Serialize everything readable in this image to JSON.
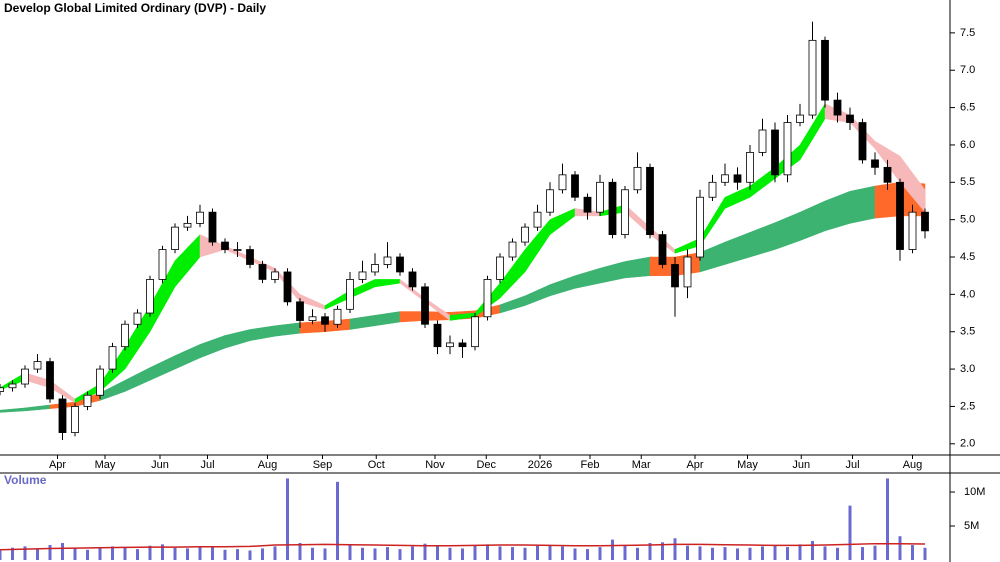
{
  "chart_data": {
    "type": "candlestick",
    "title": "Develop Global Limited Ordinary (DVP) - Daily",
    "x": [
      0,
      1,
      2,
      3,
      4,
      5,
      6,
      7,
      8,
      9,
      10,
      11,
      12,
      13,
      14,
      15,
      16,
      17,
      18,
      19,
      20,
      21,
      22,
      23,
      24,
      25,
      26,
      27,
      28,
      29,
      30,
      31,
      32,
      33,
      34,
      35,
      36,
      37,
      38,
      39,
      40,
      41,
      42,
      43,
      44,
      45,
      46,
      47,
      48,
      49,
      50,
      51,
      52,
      53,
      54,
      55,
      56,
      57,
      58,
      59,
      60,
      61,
      62,
      63,
      64,
      65,
      66,
      67,
      68,
      69,
      70,
      71,
      72,
      73,
      74
    ],
    "xlim": [
      0,
      76
    ],
    "xticks": [
      {
        "value": 4.6,
        "label": "Apr"
      },
      {
        "value": 8.4,
        "label": "May"
      },
      {
        "value": 12.8,
        "label": "Jun"
      },
      {
        "value": 16.6,
        "label": "Jul"
      },
      {
        "value": 21.4,
        "label": "Aug"
      },
      {
        "value": 25.8,
        "label": "Sep"
      },
      {
        "value": 30.1,
        "label": "Oct"
      },
      {
        "value": 34.8,
        "label": "Nov"
      },
      {
        "value": 38.9,
        "label": "Dec"
      },
      {
        "value": 43.2,
        "label": "2026"
      },
      {
        "value": 47.2,
        "label": "Feb"
      },
      {
        "value": 51.3,
        "label": "Mar"
      },
      {
        "value": 55.6,
        "label": "Apr"
      },
      {
        "value": 59.8,
        "label": "May"
      },
      {
        "value": 64.1,
        "label": "Jun"
      },
      {
        "value": 68.2,
        "label": "Jul"
      },
      {
        "value": 73,
        "label": "Aug"
      }
    ],
    "ylim": [
      1.85,
      7.94
    ],
    "yticks": [
      {
        "value": 2,
        "label": "2.0"
      },
      2.5,
      {
        "value": 3,
        "label": "3.0"
      },
      3.5,
      {
        "value": 4,
        "label": "4.0"
      },
      4.5,
      {
        "value": 5,
        "label": "5.0"
      },
      5.5,
      {
        "value": 6,
        "label": "6.0"
      },
      6.5,
      {
        "value": 7,
        "label": "7.0"
      },
      7.5
    ],
    "open": [
      2.7,
      2.75,
      2.8,
      3.0,
      3.1,
      2.6,
      2.15,
      2.5,
      2.65,
      3.0,
      3.3,
      3.6,
      3.75,
      4.2,
      4.6,
      4.9,
      4.95,
      5.1,
      4.7,
      4.6,
      4.6,
      4.4,
      4.2,
      4.3,
      3.9,
      3.65,
      3.7,
      3.6,
      3.8,
      4.2,
      4.3,
      4.4,
      4.5,
      4.3,
      4.1,
      3.6,
      3.3,
      3.35,
      3.3,
      3.7,
      4.2,
      4.5,
      4.7,
      4.9,
      5.1,
      5.4,
      5.6,
      5.3,
      5.1,
      5.5,
      4.8,
      5.4,
      5.7,
      4.8,
      4.4,
      4.1,
      4.5,
      5.3,
      5.5,
      5.6,
      5.5,
      5.9,
      6.2,
      5.6,
      6.3,
      6.4,
      7.4,
      6.6,
      6.4,
      6.3,
      5.8,
      5.7,
      5.5,
      4.6,
      5.1
    ],
    "high": [
      2.8,
      2.85,
      3.05,
      3.2,
      3.15,
      2.65,
      2.55,
      2.7,
      3.05,
      3.35,
      3.65,
      3.8,
      4.25,
      4.65,
      4.95,
      5.05,
      5.2,
      5.15,
      4.75,
      4.7,
      4.65,
      4.45,
      4.35,
      4.35,
      3.95,
      3.8,
      3.75,
      3.85,
      4.3,
      4.45,
      4.55,
      4.7,
      4.55,
      4.35,
      4.15,
      3.65,
      3.45,
      3.4,
      3.75,
      4.25,
      4.55,
      4.75,
      4.95,
      5.2,
      5.5,
      5.75,
      5.65,
      5.35,
      5.6,
      5.55,
      5.45,
      5.9,
      5.75,
      4.85,
      4.5,
      4.6,
      5.4,
      5.6,
      5.75,
      5.7,
      6.0,
      6.35,
      6.3,
      6.4,
      6.55,
      7.65,
      7.45,
      6.7,
      6.5,
      6.35,
      5.9,
      5.8,
      5.55,
      5.2,
      5.15
    ],
    "low": [
      2.65,
      2.7,
      2.75,
      2.95,
      2.55,
      2.05,
      2.1,
      2.45,
      2.6,
      2.95,
      3.25,
      3.55,
      3.7,
      4.15,
      4.55,
      4.85,
      4.9,
      4.65,
      4.55,
      4.5,
      4.35,
      4.15,
      4.15,
      3.85,
      3.55,
      3.6,
      3.5,
      3.55,
      3.75,
      4.15,
      4.25,
      4.35,
      4.25,
      4.05,
      3.55,
      3.2,
      3.2,
      3.15,
      3.25,
      3.65,
      4.15,
      4.45,
      4.65,
      4.85,
      5.05,
      5.35,
      5.25,
      5.0,
      5.05,
      4.75,
      4.75,
      5.35,
      4.75,
      4.35,
      3.7,
      3.95,
      4.45,
      5.25,
      5.45,
      5.4,
      5.4,
      5.85,
      5.5,
      5.5,
      6.25,
      6.35,
      6.5,
      6.3,
      6.2,
      5.75,
      5.6,
      5.4,
      4.45,
      4.55,
      4.75
    ],
    "close": [
      2.75,
      2.8,
      3.0,
      3.1,
      2.6,
      2.15,
      2.5,
      2.65,
      3.0,
      3.3,
      3.6,
      3.75,
      4.2,
      4.6,
      4.9,
      4.95,
      5.1,
      4.7,
      4.6,
      4.6,
      4.4,
      4.2,
      4.3,
      3.9,
      3.65,
      3.7,
      3.6,
      3.8,
      4.2,
      4.3,
      4.4,
      4.5,
      4.3,
      4.1,
      3.6,
      3.3,
      3.35,
      3.3,
      3.7,
      4.2,
      4.5,
      4.7,
      4.9,
      5.1,
      5.4,
      5.6,
      5.3,
      5.1,
      5.5,
      4.8,
      5.4,
      5.7,
      4.8,
      4.4,
      4.1,
      4.5,
      5.3,
      5.5,
      5.6,
      5.5,
      5.9,
      6.2,
      5.6,
      6.3,
      6.4,
      7.4,
      6.6,
      6.4,
      6.3,
      5.8,
      5.7,
      5.5,
      4.6,
      5.1,
      4.85
    ],
    "up_color": "#ffffff",
    "down_color": "#000000",
    "sample_x": [
      0,
      2,
      4,
      6,
      8,
      10,
      12,
      14,
      16,
      18,
      20,
      22,
      24,
      26,
      28,
      30,
      32,
      34,
      36,
      38,
      40,
      42,
      44,
      46,
      48,
      50,
      52,
      54,
      56,
      58,
      60,
      62,
      64,
      66,
      68,
      70,
      72,
      74
    ],
    "short_ribbon": {
      "rising_color": "#00ee00",
      "falling_color": "#f6b8b8",
      "upper": [
        2.75,
        2.95,
        2.85,
        2.6,
        2.8,
        3.3,
        3.85,
        4.45,
        4.8,
        4.65,
        4.5,
        4.35,
        4.0,
        3.85,
        4.05,
        4.2,
        4.2,
        3.95,
        3.72,
        3.75,
        4.15,
        4.6,
        5.0,
        5.15,
        5.1,
        5.2,
        4.9,
        4.6,
        4.75,
        5.3,
        5.45,
        5.7,
        6.0,
        6.55,
        6.4,
        6.05,
        5.85,
        5.4
      ],
      "lower": [
        2.72,
        2.85,
        2.75,
        2.55,
        2.7,
        3.0,
        3.5,
        4.1,
        4.5,
        4.6,
        4.45,
        4.3,
        3.9,
        3.8,
        3.95,
        4.1,
        4.15,
        3.9,
        3.65,
        3.7,
        3.95,
        4.3,
        4.8,
        5.05,
        5.05,
        5.1,
        4.8,
        4.55,
        4.65,
        5.15,
        5.3,
        5.55,
        5.8,
        6.35,
        6.3,
        5.95,
        5.5,
        5.1
      ]
    },
    "long_ribbon": {
      "color": "#3cb371",
      "below_color": "#ff6a2a",
      "upper": [
        2.45,
        2.48,
        2.52,
        2.56,
        2.68,
        2.85,
        3.02,
        3.18,
        3.33,
        3.45,
        3.53,
        3.58,
        3.62,
        3.64,
        3.67,
        3.72,
        3.77,
        3.77,
        3.76,
        3.78,
        3.86,
        3.98,
        4.13,
        4.25,
        4.35,
        4.44,
        4.5,
        4.5,
        4.56,
        4.7,
        4.83,
        4.96,
        5.1,
        5.25,
        5.38,
        5.45,
        5.5,
        5.48
      ],
      "lower": [
        2.42,
        2.44,
        2.47,
        2.5,
        2.58,
        2.7,
        2.85,
        3.0,
        3.15,
        3.28,
        3.38,
        3.44,
        3.48,
        3.5,
        3.53,
        3.58,
        3.63,
        3.65,
        3.66,
        3.68,
        3.75,
        3.85,
        3.98,
        4.08,
        4.15,
        4.22,
        4.25,
        4.25,
        4.3,
        4.4,
        4.5,
        4.6,
        4.72,
        4.85,
        4.95,
        5.02,
        5.05,
        5.05
      ]
    },
    "volume": {
      "label": "Volume",
      "color": "#6a6ad0",
      "average_color": "#cc2222",
      "ylim": [
        0,
        12800000
      ],
      "yticks": [
        {
          "value": 5000000,
          "label": "5M"
        },
        {
          "value": 10000000,
          "label": "10M"
        }
      ],
      "values": [
        1500000,
        1800000,
        2000000,
        1600000,
        2200000,
        2500000,
        1800000,
        1500000,
        1700000,
        2000000,
        1900000,
        1600000,
        2100000,
        2300000,
        1800000,
        1700000,
        2000000,
        1900000,
        1500000,
        1600000,
        1400000,
        1700000,
        2000000,
        12000000,
        2500000,
        1800000,
        1700000,
        11500000,
        2200000,
        1800000,
        1700000,
        1900000,
        1600000,
        2000000,
        2400000,
        2100000,
        1800000,
        1700000,
        2100000,
        2300000,
        2000000,
        1900000,
        1800000,
        2100000,
        2200000,
        2000000,
        1700000,
        1600000,
        1900000,
        3000000,
        2200000,
        1800000,
        2500000,
        2600000,
        3200000,
        2100000,
        2000000,
        1800000,
        1900000,
        1700000,
        1800000,
        2000000,
        2200000,
        1900000,
        2300000,
        2800000,
        2000000,
        1800000,
        8000000,
        1900000,
        2100000,
        12000000,
        3500000,
        2200000,
        1800000
      ],
      "average": [
        1500000,
        1600000,
        1700000,
        1750000,
        1800000,
        1850000,
        1900000,
        1900000,
        1950000,
        1950000,
        2000000,
        2200000,
        2250000,
        2300000,
        2250000,
        2200000,
        2150000,
        2100000,
        2100000,
        2150000,
        2200000,
        2200000,
        2150000,
        2100000,
        2100000,
        2150000,
        2200000,
        2300000,
        2300000,
        2250000,
        2200000,
        2150000,
        2150000,
        2200000,
        2300000,
        2400000,
        2400000,
        2350000
      ]
    }
  }
}
